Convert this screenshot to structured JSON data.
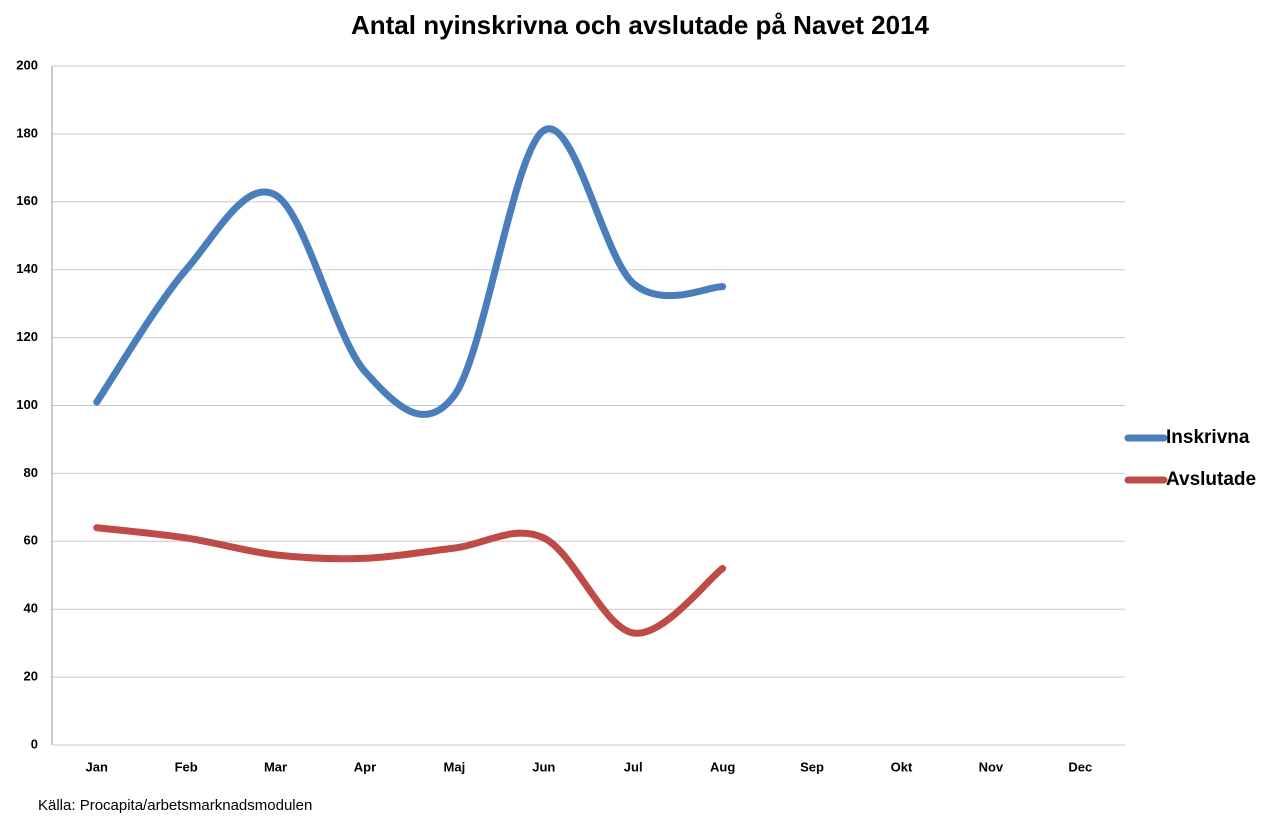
{
  "chart_data": {
    "type": "line",
    "title": "Antal nyinskrivna och avslutade på Navet 2014",
    "categories": [
      "Jan",
      "Feb",
      "Mar",
      "Apr",
      "Maj",
      "Jun",
      "Jul",
      "Aug",
      "Sep",
      "Okt",
      "Nov",
      "Dec"
    ],
    "series": [
      {
        "name": "Inskrivna",
        "color": "#4a7ebb",
        "values": [
          101,
          140,
          162,
          110,
          103,
          181,
          136,
          135,
          null,
          null,
          null,
          null
        ]
      },
      {
        "name": "Avslutade",
        "color": "#be4b48",
        "values": [
          64,
          61,
          56,
          55,
          58,
          61,
          33,
          52,
          null,
          null,
          null,
          null
        ]
      }
    ],
    "ylim": [
      0,
      200
    ],
    "yticks": [
      0,
      20,
      40,
      60,
      80,
      100,
      120,
      140,
      160,
      180,
      200
    ],
    "grid": true,
    "smooth": true,
    "legend": "right",
    "source": "Källa: Procapita/arbetsmarknadsmodulen"
  }
}
